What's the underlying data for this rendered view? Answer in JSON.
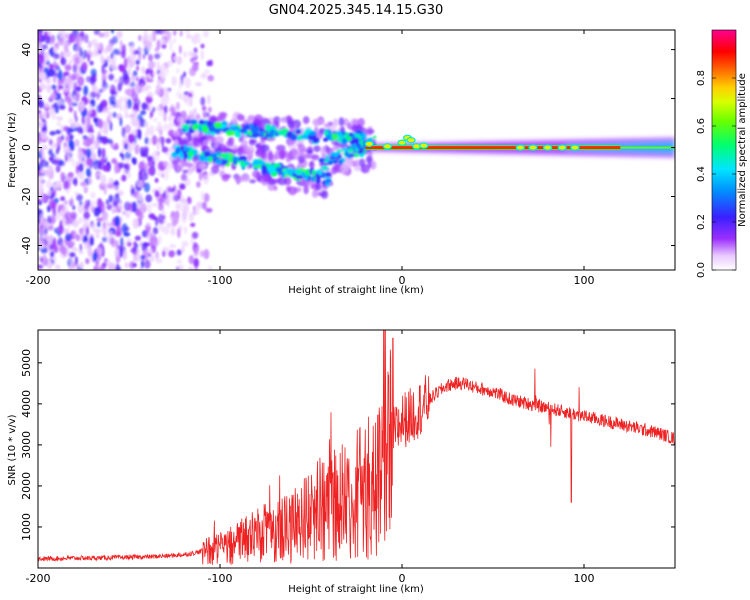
{
  "chart_data": [
    {
      "type": "heatmap",
      "title": "GN04.2025.345.14.15.G30",
      "xlabel": "Height of straight line (km)",
      "ylabel": "Frequency (Hz)",
      "xlim": [
        -200,
        150
      ],
      "ylim": [
        -50,
        48
      ],
      "xticks": [
        -200,
        -100,
        0,
        100
      ],
      "yticks": [
        -40,
        -20,
        0,
        20,
        40
      ],
      "colorbar": {
        "label": "Normalized spectral amplitude",
        "range": [
          0,
          1
        ],
        "ticks": [
          0.0,
          0.2,
          0.4,
          0.6,
          0.8
        ],
        "tick_labels": [
          "0.0",
          "0.2",
          "0.4",
          "0.6",
          "0.8"
        ],
        "colormap": "rainbow (white-violet-blue-cyan-green-yellow-red-magenta)"
      },
      "features": [
        {
          "name": "noise-cloud",
          "x_range": [
            -200,
            -120
          ],
          "freq_range": [
            -50,
            48
          ],
          "amplitude": "0.05-0.25"
        },
        {
          "name": "branch-upper",
          "x_range": [
            -120,
            -20
          ],
          "freq_range": [
            0,
            12
          ],
          "amplitude": "0.2-0.6"
        },
        {
          "name": "branch-lower",
          "x_range": [
            -125,
            -40
          ],
          "freq_range": [
            -14,
            0
          ],
          "amplitude": "0.2-0.6"
        },
        {
          "name": "carrier-line",
          "x_range": [
            -20,
            150
          ],
          "freq_range": [
            -1,
            1
          ],
          "amplitude": "0.8-1.0"
        }
      ]
    },
    {
      "type": "line",
      "xlabel": "Height of straight line (km)",
      "ylabel": "SNR (10 * v/v)",
      "xlim": [
        -200,
        150
      ],
      "ylim": [
        0,
        5800
      ],
      "xticks": [
        -200,
        -100,
        0,
        100
      ],
      "yticks": [
        1000,
        2000,
        3000,
        4000,
        5000
      ],
      "series": [
        {
          "name": "SNR",
          "color": "#ee2222",
          "x": [
            -200,
            -190,
            -180,
            -170,
            -160,
            -150,
            -140,
            -130,
            -120,
            -110,
            -100,
            -90,
            -80,
            -70,
            -60,
            -50,
            -45,
            -40,
            -35,
            -30,
            -25,
            -20,
            -15,
            -10,
            -5,
            0,
            5,
            10,
            15,
            20,
            25,
            30,
            35,
            40,
            50,
            60,
            70,
            80,
            90,
            100,
            110,
            120,
            130,
            140,
            150
          ],
          "values": [
            200,
            210,
            220,
            220,
            230,
            240,
            250,
            270,
            300,
            380,
            480,
            650,
            800,
            950,
            1050,
            1300,
            1500,
            1600,
            1700,
            1800,
            1900,
            2000,
            2200,
            2500,
            3200,
            3600,
            3700,
            3900,
            4100,
            4300,
            4450,
            4500,
            4500,
            4400,
            4300,
            4100,
            4000,
            3900,
            3800,
            3700,
            3600,
            3500,
            3400,
            3300,
            3150
          ]
        }
      ]
    }
  ]
}
